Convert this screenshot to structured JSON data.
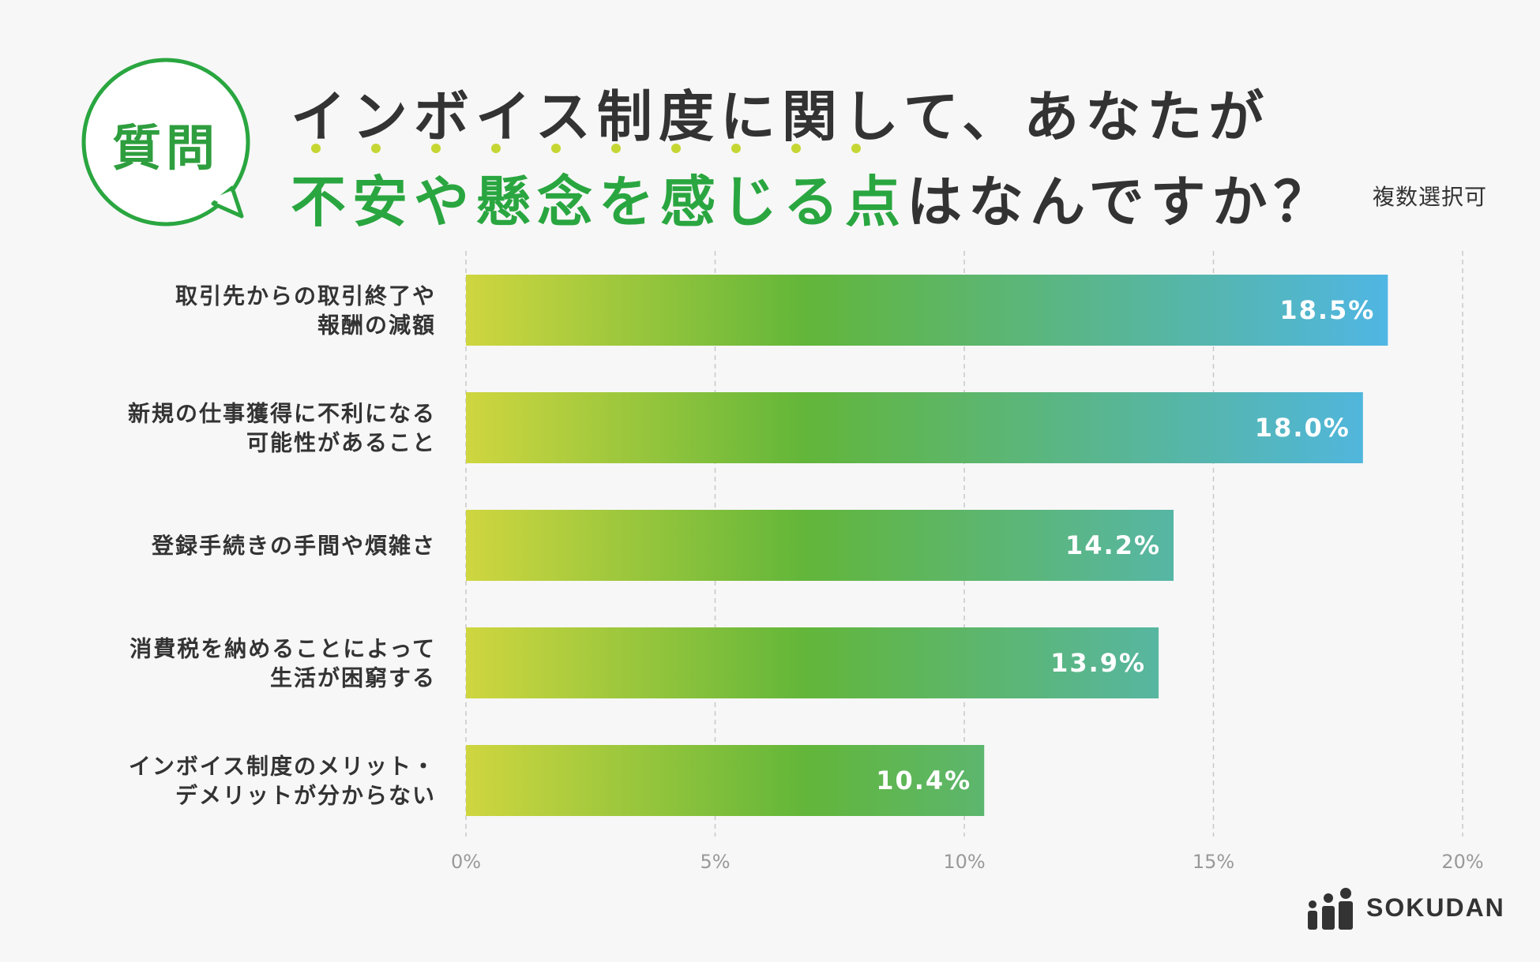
{
  "badge": {
    "text": "質問"
  },
  "title": {
    "line1": "インボイス制度に関して、あなたが",
    "line2_highlight": "不安や懸念を感じる点",
    "line2_rest": "はなんですか？"
  },
  "note": "複数選択可",
  "colors": {
    "accent_green": "#2aa640",
    "bar_gradient": [
      "#cfd63f",
      "#62b63a",
      "#4fb6ea"
    ]
  },
  "chart_data": {
    "type": "bar",
    "orientation": "horizontal",
    "categories": [
      [
        "取引先からの取引終了や",
        "報酬の減額"
      ],
      [
        "新規の仕事獲得に不利になる",
        "可能性があること"
      ],
      [
        "登録手続きの手間や煩雑さ"
      ],
      [
        "消費税を納めることによって",
        "生活が困窮する"
      ],
      [
        "インボイス制度のメリット・",
        "デメリットが分からない"
      ]
    ],
    "values": [
      18.5,
      18.0,
      14.2,
      13.9,
      10.4
    ],
    "value_labels": [
      "18.5%",
      "18.0%",
      "14.2%",
      "13.9%",
      "10.4%"
    ],
    "xlim": [
      0,
      20
    ],
    "x_ticks": [
      0,
      5,
      10,
      15,
      20
    ],
    "x_tick_labels": [
      "0%",
      "5%",
      "10%",
      "15%",
      "20%"
    ],
    "grid": true,
    "xlabel": "",
    "ylabel": ""
  },
  "logo": {
    "text": "SOKUDAN",
    "icon": "sokudan-logo-icon"
  }
}
